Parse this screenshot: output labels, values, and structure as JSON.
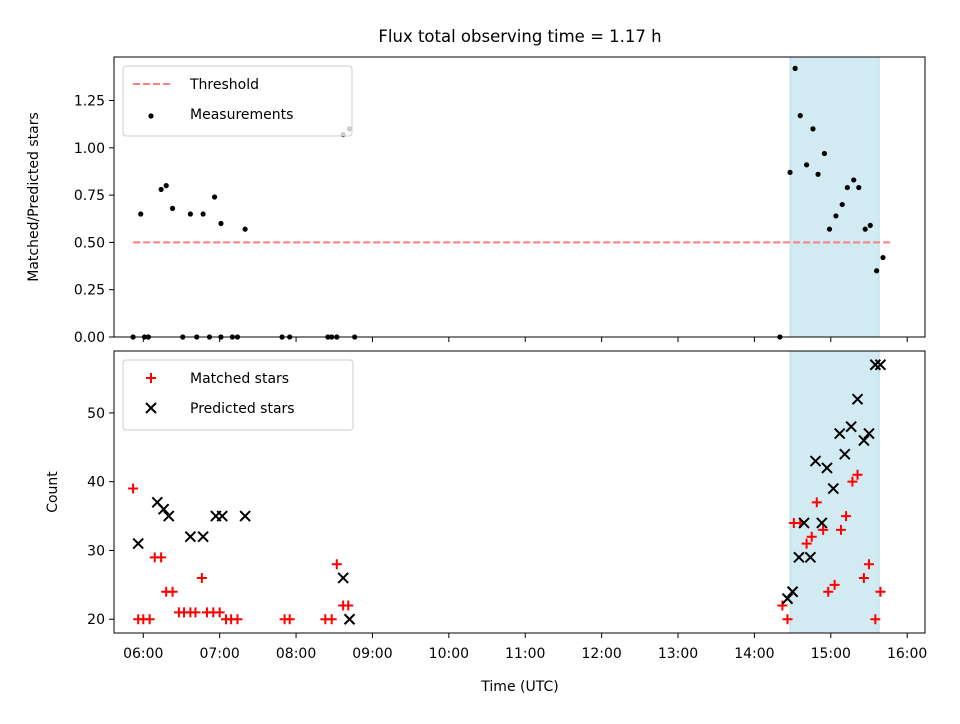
{
  "chart_data": {
    "title": "Flux total observing time = 1.17 h",
    "xlabel": "Time (UTC)",
    "x_tick_labels": [
      "06:00",
      "07:00",
      "08:00",
      "09:00",
      "10:00",
      "11:00",
      "12:00",
      "13:00",
      "14:00",
      "15:00",
      "16:00"
    ],
    "xlim": [
      "05:37",
      "16:14"
    ],
    "shaded_interval": {
      "start": "14:28",
      "end": "15:38",
      "color": "#add8e6"
    },
    "panels": [
      {
        "type": "scatter",
        "ylabel": "Matched/Predicted stars",
        "ylim": [
          0,
          1.48
        ],
        "y_tick_labels": [
          "0.00",
          "0.25",
          "0.50",
          "0.75",
          "1.00",
          "1.25"
        ],
        "y_tick_values": [
          0,
          0.25,
          0.5,
          0.75,
          1.0,
          1.25
        ],
        "legend_position": "upper-left",
        "series": [
          {
            "name": "Threshold",
            "kind": "dashed-line",
            "color": "#ff7f7f",
            "points": [
              [
                "05:52",
                0.5
              ],
              [
                "15:48",
                0.5
              ]
            ]
          },
          {
            "name": "Measurements",
            "kind": "dot",
            "color": "#000000",
            "points": [
              [
                "05:52",
                0
              ],
              [
                "05:58",
                0.65
              ],
              [
                "06:01",
                0
              ],
              [
                "06:04",
                0
              ],
              [
                "06:14",
                0.78
              ],
              [
                "06:18",
                0.8
              ],
              [
                "06:23",
                0.68
              ],
              [
                "06:31",
                0
              ],
              [
                "06:37",
                0.65
              ],
              [
                "06:42",
                0
              ],
              [
                "06:47",
                0.65
              ],
              [
                "06:52",
                0
              ],
              [
                "06:56",
                0.74
              ],
              [
                "07:01",
                0.6
              ],
              [
                "07:01",
                0
              ],
              [
                "07:10",
                0
              ],
              [
                "07:14",
                0
              ],
              [
                "07:20",
                0.57
              ],
              [
                "07:49",
                0
              ],
              [
                "07:55",
                0
              ],
              [
                "08:25",
                0
              ],
              [
                "08:28",
                0
              ],
              [
                "08:32",
                0
              ],
              [
                "08:37",
                1.07
              ],
              [
                "08:42",
                1.1
              ],
              [
                "08:46",
                0
              ],
              [
                "14:20",
                0
              ],
              [
                "14:28",
                0.87
              ],
              [
                "14:32",
                1.42
              ],
              [
                "14:36",
                1.17
              ],
              [
                "14:41",
                0.91
              ],
              [
                "14:46",
                1.1
              ],
              [
                "14:50",
                0.86
              ],
              [
                "14:55",
                0.97
              ],
              [
                "14:59",
                0.57
              ],
              [
                "15:04",
                0.64
              ],
              [
                "15:09",
                0.7
              ],
              [
                "15:13",
                0.79
              ],
              [
                "15:18",
                0.83
              ],
              [
                "15:22",
                0.79
              ],
              [
                "15:27",
                0.57
              ],
              [
                "15:31",
                0.59
              ],
              [
                "15:36",
                0.35
              ],
              [
                "15:41",
                0.42
              ]
            ]
          }
        ]
      },
      {
        "type": "scatter",
        "ylabel": "Count",
        "ylim": [
          18,
          59
        ],
        "y_tick_labels": [
          "20",
          "30",
          "40",
          "50"
        ],
        "y_tick_values": [
          20,
          30,
          40,
          50
        ],
        "legend_position": "upper-left",
        "series": [
          {
            "name": "Matched stars",
            "kind": "plus",
            "color": "#ff0000",
            "points": [
              [
                "05:52",
                39
              ],
              [
                "05:56",
                20
              ],
              [
                "06:00",
                20
              ],
              [
                "06:05",
                20
              ],
              [
                "06:09",
                29
              ],
              [
                "06:14",
                29
              ],
              [
                "06:18",
                24
              ],
              [
                "06:23",
                24
              ],
              [
                "06:28",
                21
              ],
              [
                "06:32",
                21
              ],
              [
                "06:37",
                21
              ],
              [
                "06:41",
                21
              ],
              [
                "06:46",
                26
              ],
              [
                "06:50",
                21
              ],
              [
                "06:55",
                21
              ],
              [
                "07:00",
                21
              ],
              [
                "07:05",
                20
              ],
              [
                "07:09",
                20
              ],
              [
                "07:14",
                20
              ],
              [
                "07:51",
                20
              ],
              [
                "07:55",
                20
              ],
              [
                "08:23",
                20
              ],
              [
                "08:28",
                20
              ],
              [
                "08:32",
                28
              ],
              [
                "08:37",
                22
              ],
              [
                "08:41",
                22
              ],
              [
                "14:22",
                22
              ],
              [
                "14:26",
                20
              ],
              [
                "14:31",
                34
              ],
              [
                "14:36",
                34
              ],
              [
                "14:41",
                31
              ],
              [
                "14:45",
                32
              ],
              [
                "14:49",
                37
              ],
              [
                "14:54",
                33
              ],
              [
                "14:58",
                24
              ],
              [
                "15:03",
                25
              ],
              [
                "15:08",
                33
              ],
              [
                "15:12",
                35
              ],
              [
                "15:17",
                40
              ],
              [
                "15:21",
                41
              ],
              [
                "15:26",
                26
              ],
              [
                "15:30",
                28
              ],
              [
                "15:35",
                20
              ],
              [
                "15:39",
                24
              ]
            ]
          },
          {
            "name": "Predicted stars",
            "kind": "x",
            "color": "#000000",
            "points": [
              [
                "05:56",
                31
              ],
              [
                "06:11",
                37
              ],
              [
                "06:16",
                36
              ],
              [
                "06:20",
                35
              ],
              [
                "06:37",
                32
              ],
              [
                "06:47",
                32
              ],
              [
                "06:57",
                35
              ],
              [
                "07:02",
                35
              ],
              [
                "07:20",
                35
              ],
              [
                "08:37",
                26
              ],
              [
                "08:42",
                20
              ],
              [
                "14:26",
                23
              ],
              [
                "14:30",
                24
              ],
              [
                "14:35",
                29
              ],
              [
                "14:39",
                34
              ],
              [
                "14:44",
                29
              ],
              [
                "14:48",
                43
              ],
              [
                "14:53",
                34
              ],
              [
                "14:57",
                42
              ],
              [
                "15:02",
                39
              ],
              [
                "15:07",
                47
              ],
              [
                "15:11",
                44
              ],
              [
                "15:16",
                48
              ],
              [
                "15:21",
                52
              ],
              [
                "15:26",
                46
              ],
              [
                "15:30",
                47
              ],
              [
                "15:35",
                57
              ],
              [
                "15:39",
                57
              ]
            ]
          }
        ]
      }
    ]
  }
}
